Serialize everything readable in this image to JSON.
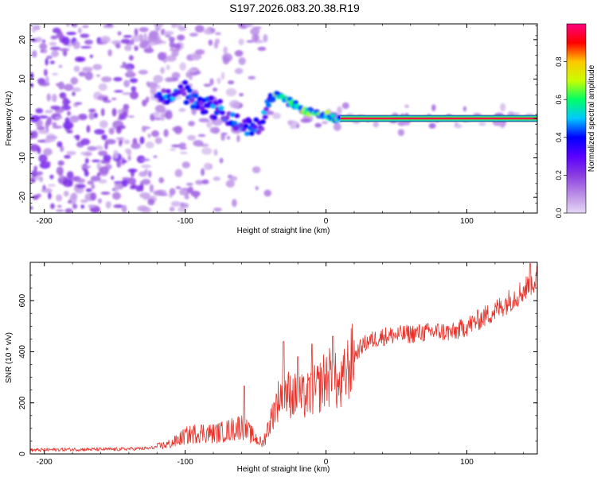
{
  "title": "S197.2026.083.20.38.R19",
  "chart_data": [
    {
      "type": "heatmap",
      "name": "spectrogram",
      "xlabel": "Height of straight line (km)",
      "ylabel": "Frequency (Hz)",
      "xlim": [
        -210,
        150
      ],
      "ylim": [
        -24,
        24
      ],
      "xticks": [
        -200,
        -100,
        0,
        100
      ],
      "yticks": [
        -20,
        -10,
        0,
        10,
        20
      ],
      "colorbar": {
        "label": "Normalized spectral amplitude",
        "range": [
          0,
          1
        ],
        "ticks": [
          "0.0",
          "0.2",
          "0.4",
          "0.6",
          "0.8"
        ],
        "tick_values": [
          0,
          0.2,
          0.4,
          0.6,
          0.8
        ],
        "colors": [
          "#e6d8f4",
          "#b98ce6",
          "#8a3ee0",
          "#5a00ff",
          "#0000ff",
          "#00c8ff",
          "#00ff64",
          "#c8ff00",
          "#ffc800",
          "#ff0000",
          "#ff0080"
        ]
      },
      "features": {
        "ridge": [
          {
            "x": -120,
            "y": 5
          },
          {
            "x": -110,
            "y": 6
          },
          {
            "x": -100,
            "y": 7
          },
          {
            "x": -90,
            "y": 4
          },
          {
            "x": -80,
            "y": 3
          },
          {
            "x": -70,
            "y": 0
          },
          {
            "x": -60,
            "y": -2
          },
          {
            "x": -50,
            "y": -3
          },
          {
            "x": -45,
            "y": 0
          },
          {
            "x": -40,
            "y": 5
          },
          {
            "x": -35,
            "y": 6
          },
          {
            "x": -30,
            "y": 5
          },
          {
            "x": -25,
            "y": 4
          },
          {
            "x": -20,
            "y": 3
          },
          {
            "x": -15,
            "y": 2
          },
          {
            "x": -10,
            "y": 2
          },
          {
            "x": -5,
            "y": 1
          },
          {
            "x": 0,
            "y": 1
          },
          {
            "x": 5,
            "y": 0
          },
          {
            "x": 10,
            "y": 0
          }
        ],
        "carrier": {
          "x_start": 10,
          "x_end": 150,
          "freq": 0,
          "amplitude": 0.95
        },
        "noise_region": {
          "x_start": -210,
          "x_end": -120,
          "freq_range": [
            -24,
            24
          ]
        }
      }
    },
    {
      "type": "line",
      "name": "snr",
      "xlabel": "Height of straight line (km)",
      "ylabel": "SNR (10 * v/v)",
      "xlim": [
        -210,
        150
      ],
      "ylim": [
        0,
        750
      ],
      "xticks": [
        -200,
        -100,
        0,
        100
      ],
      "yticks": [
        0,
        200,
        400,
        600
      ],
      "color": "#e8322a",
      "envelope": [
        {
          "x": -210,
          "y": 15
        },
        {
          "x": -180,
          "y": 18
        },
        {
          "x": -150,
          "y": 18
        },
        {
          "x": -125,
          "y": 22
        },
        {
          "x": -110,
          "y": 40
        },
        {
          "x": -100,
          "y": 70
        },
        {
          "x": -90,
          "y": 85
        },
        {
          "x": -80,
          "y": 80
        },
        {
          "x": -70,
          "y": 90
        },
        {
          "x": -60,
          "y": 110
        },
        {
          "x": -52,
          "y": 70
        },
        {
          "x": -45,
          "y": 40
        },
        {
          "x": -40,
          "y": 120
        },
        {
          "x": -35,
          "y": 200
        },
        {
          "x": -30,
          "y": 250
        },
        {
          "x": -25,
          "y": 230
        },
        {
          "x": -15,
          "y": 220
        },
        {
          "x": -5,
          "y": 260
        },
        {
          "x": 0,
          "y": 300
        },
        {
          "x": 5,
          "y": 300
        },
        {
          "x": 10,
          "y": 250
        },
        {
          "x": 15,
          "y": 330
        },
        {
          "x": 20,
          "y": 380
        },
        {
          "x": 25,
          "y": 420
        },
        {
          "x": 30,
          "y": 440
        },
        {
          "x": 40,
          "y": 460
        },
        {
          "x": 60,
          "y": 470
        },
        {
          "x": 80,
          "y": 480
        },
        {
          "x": 90,
          "y": 475
        },
        {
          "x": 100,
          "y": 500
        },
        {
          "x": 110,
          "y": 530
        },
        {
          "x": 120,
          "y": 560
        },
        {
          "x": 130,
          "y": 600
        },
        {
          "x": 140,
          "y": 640
        },
        {
          "x": 150,
          "y": 690
        }
      ],
      "spikes": [
        {
          "x": -58,
          "y": 265
        },
        {
          "x": -30,
          "y": 440
        },
        {
          "x": -20,
          "y": 380
        },
        {
          "x": -10,
          "y": 430
        },
        {
          "x": 5,
          "y": 460
        },
        {
          "x": 145,
          "y": 745
        }
      ]
    }
  ]
}
